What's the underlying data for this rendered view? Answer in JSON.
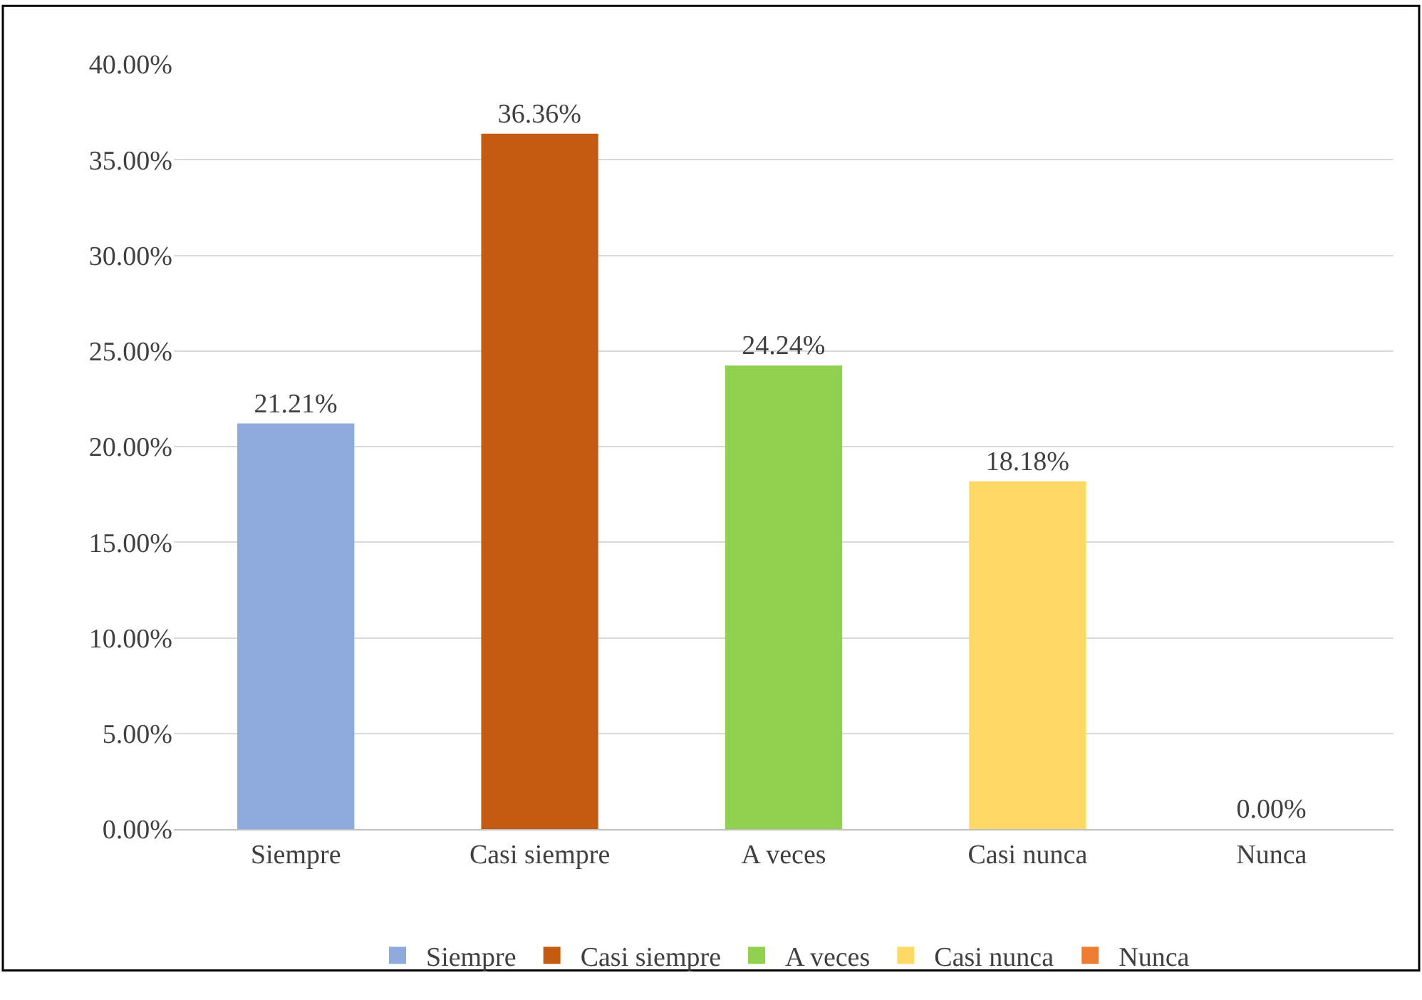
{
  "chart_data": {
    "type": "bar",
    "categories": [
      "Siempre",
      "Casi siempre",
      "A veces",
      "Casi nunca",
      "Nunca"
    ],
    "series": [
      {
        "name": "Siempre",
        "color": "#8faadc",
        "values": [
          21.21,
          null,
          null,
          null,
          null
        ],
        "value_labels": [
          "21.21%",
          null,
          null,
          null,
          null
        ]
      },
      {
        "name": "Casi siempre",
        "color": "#c55a11",
        "values": [
          null,
          36.36,
          null,
          null,
          null
        ],
        "value_labels": [
          null,
          "36.36%",
          null,
          null,
          null
        ]
      },
      {
        "name": "A veces",
        "color": "#92d050",
        "values": [
          null,
          null,
          24.24,
          null,
          null
        ],
        "value_labels": [
          null,
          null,
          "24.24%",
          null,
          null
        ]
      },
      {
        "name": "Casi nunca",
        "color": "#ffd966",
        "values": [
          null,
          null,
          null,
          18.18,
          null
        ],
        "value_labels": [
          null,
          null,
          null,
          "18.18%",
          null
        ]
      },
      {
        "name": "Nunca",
        "color": "#ed7d31",
        "values": [
          null,
          null,
          null,
          null,
          0.0
        ],
        "value_labels": [
          null,
          null,
          null,
          null,
          "0.00%"
        ]
      }
    ],
    "ylim": [
      0,
      40
    ],
    "yticks": [
      {
        "value": 0,
        "label": "0.00%"
      },
      {
        "value": 5,
        "label": "5.00%"
      },
      {
        "value": 10,
        "label": "10.00%"
      },
      {
        "value": 15,
        "label": "15.00%"
      },
      {
        "value": 20,
        "label": "20.00%"
      },
      {
        "value": 25,
        "label": "25.00%"
      },
      {
        "value": 30,
        "label": "30.00%"
      },
      {
        "value": 35,
        "label": "35.00%"
      },
      {
        "value": 40,
        "label": "40.00%"
      }
    ],
    "grid": "y",
    "legend": "bottom"
  }
}
